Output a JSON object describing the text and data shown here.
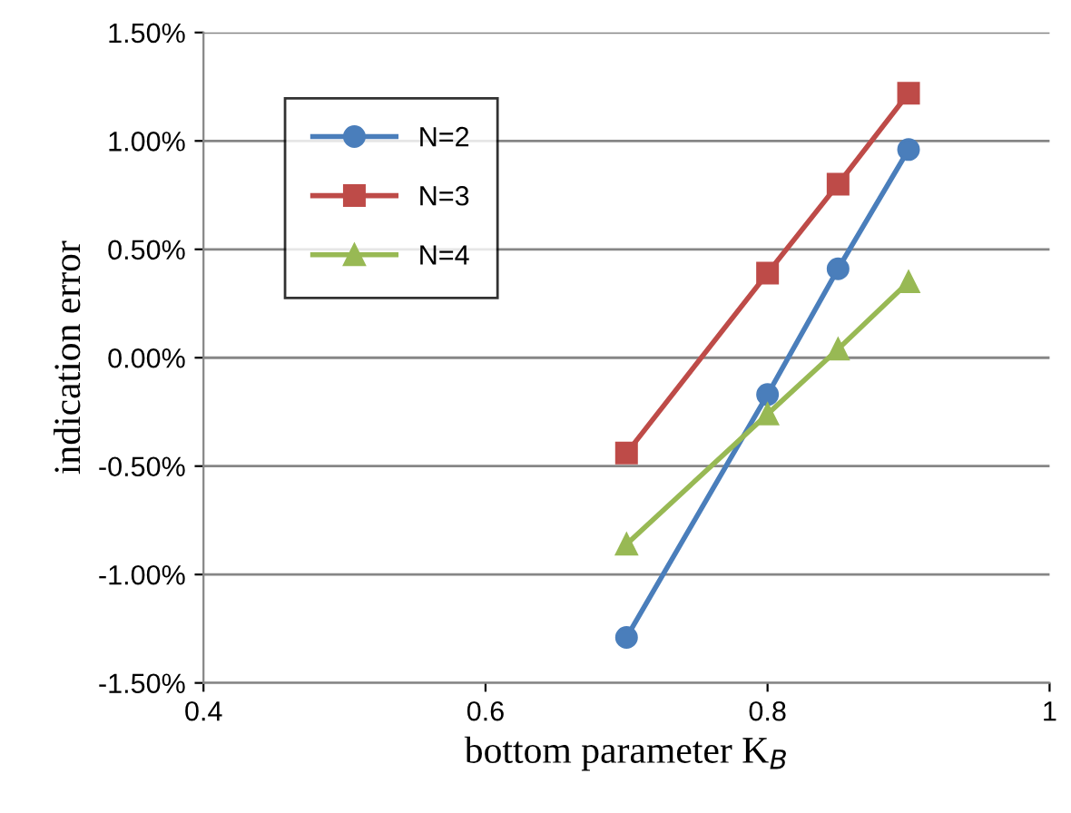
{
  "chart_data": {
    "type": "line",
    "xlabel": "bottom parameter K$_{B}$",
    "ylabel": "indication error",
    "xlim": [
      0.4,
      1
    ],
    "xticks": [
      0.4,
      0.6,
      0.8,
      1
    ],
    "ylim": [
      -1.5,
      1.5
    ],
    "yticks": [
      {
        "value": -1.5,
        "label": "-1.50%"
      },
      {
        "value": -1.0,
        "label": "-1.00%"
      },
      {
        "value": -0.5,
        "label": "-0.50%"
      },
      {
        "value": 0,
        "label": "0.00%"
      },
      {
        "value": 0.5,
        "label": "0.50%"
      },
      {
        "value": 1.0,
        "label": "1.00%"
      },
      {
        "value": 1.5,
        "label": "1.50%"
      }
    ],
    "grid": "y",
    "legend": "top left",
    "series": [
      {
        "name": "N=2",
        "color": "#4a7ebb",
        "marker": "circle",
        "x": [
          0.7,
          0.8,
          0.85,
          0.9
        ],
        "values": [
          -1.29,
          -0.17,
          0.41,
          0.96
        ]
      },
      {
        "name": "N=3",
        "color": "#be4b48",
        "marker": "square",
        "x": [
          0.7,
          0.8,
          0.85,
          0.9
        ],
        "values": [
          -0.44,
          0.39,
          0.8,
          1.22
        ]
      },
      {
        "name": "N=4",
        "color": "#98b954",
        "marker": "triangle",
        "x": [
          0.7,
          0.8,
          0.85,
          0.9
        ],
        "values": [
          -0.86,
          -0.26,
          0.04,
          0.35
        ]
      }
    ]
  }
}
